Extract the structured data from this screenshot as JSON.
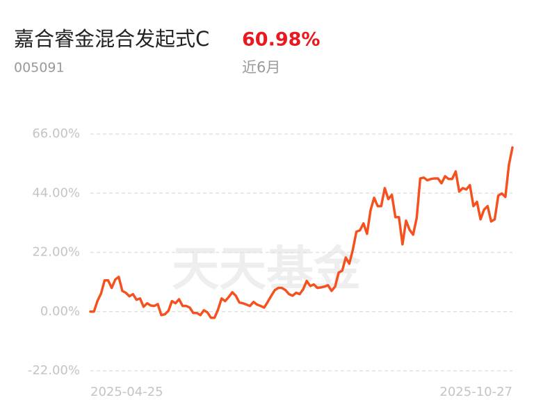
{
  "header": {
    "fund_name": "嘉合睿金混合发起式C",
    "change": "60.98%",
    "code": "005091",
    "period": "近6月"
  },
  "chart_data": {
    "type": "line",
    "watermark": "天天基金",
    "categories": [
      "2025-04-25",
      null,
      null,
      null,
      null,
      null,
      null,
      null,
      null,
      null,
      null,
      null,
      null,
      null,
      null,
      null,
      null,
      null,
      null,
      null,
      null,
      null,
      null,
      null,
      null,
      null,
      null,
      null,
      null,
      null,
      null,
      null,
      null,
      null,
      null,
      null,
      null,
      null,
      null,
      null,
      null,
      null,
      null,
      null,
      null,
      null,
      null,
      null,
      null,
      null,
      null,
      null,
      null,
      null,
      null,
      null,
      null,
      null,
      null,
      null,
      null,
      null,
      null,
      null,
      null,
      null,
      null,
      null,
      null,
      null,
      null,
      null,
      null,
      null,
      null,
      null,
      null,
      null,
      null,
      null,
      null,
      null,
      null,
      null,
      null,
      null,
      null,
      null,
      null,
      null,
      null,
      null,
      null,
      null,
      null,
      null,
      null,
      null,
      null,
      null,
      null,
      null,
      null,
      null,
      null,
      null,
      null,
      null,
      null,
      null,
      null,
      null,
      null,
      null,
      null,
      null,
      null,
      null,
      null,
      "2025-10-27"
    ],
    "series": [
      {
        "color": "#f5511e",
        "values": [
          0,
          0,
          4,
          6.7,
          11.6,
          11.6,
          8.8,
          11.9,
          12.9,
          7.7,
          7,
          5.7,
          6.5,
          4.4,
          4.9,
          1.8,
          3.1,
          2.3,
          2.1,
          2.8,
          -1.3,
          -1,
          0.3,
          3.9,
          3.1,
          4.6,
          2.1,
          2.1,
          1.5,
          -0.5,
          -0.5,
          -1.3,
          0.5,
          -0.3,
          -2.3,
          -2.3,
          0.8,
          4.9,
          3.9,
          5.4,
          7.2,
          5.9,
          3.4,
          3.1,
          2.6,
          2.1,
          3.6,
          2.6,
          2.1,
          1.5,
          3.6,
          5.9,
          8,
          8.8,
          8.8,
          8,
          6.5,
          5.9,
          7,
          6.5,
          8.3,
          11.4,
          9.5,
          10.1,
          8.8,
          9,
          9.3,
          9.8,
          7.7,
          9.3,
          14.5,
          15.2,
          20.1,
          17.8,
          23,
          29.7,
          30.2,
          32.8,
          28.9,
          37.7,
          42.3,
          39.2,
          39.2,
          45.9,
          41.8,
          43.4,
          35.1,
          35.1,
          25,
          33.8,
          30.4,
          28.6,
          34.8,
          49.5,
          49.8,
          48.8,
          49.3,
          49.5,
          49.5,
          47.7,
          50.3,
          49.3,
          49.3,
          52.1,
          44.6,
          45.9,
          45.4,
          47,
          39.2,
          40.8,
          34.3,
          37.9,
          39.2,
          33.5,
          34.3,
          43.1,
          43.9,
          42.6,
          54.5,
          60.98
        ]
      }
    ],
    "ylim": [
      -22,
      66
    ],
    "yticks": [
      {
        "value": -22,
        "label": "-22.00%"
      },
      {
        "value": 0,
        "label": "0.00%"
      },
      {
        "value": 22,
        "label": "22.00%"
      },
      {
        "value": 44,
        "label": "44.00%"
      },
      {
        "value": 66,
        "label": "66.00%"
      }
    ],
    "grid": true
  }
}
